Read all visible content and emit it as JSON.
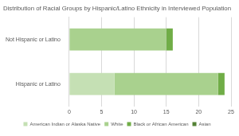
{
  "chart_data": {
    "type": "bar",
    "title": "Distribution of Racial Groups by Hispanic/Latino Ethnicity in Interviewed Population",
    "orientation": "horizontal",
    "stacked": true,
    "grid": true,
    "legend": "bottom",
    "categories": [
      "Not Hispanic or Latino",
      "Hispanic or Latino"
    ],
    "series": [
      {
        "name": "American Indian or Alaska Native",
        "color": "#c5e0b4",
        "values": [
          0,
          7
        ]
      },
      {
        "name": "White",
        "color": "#a9d18e",
        "values": [
          15,
          16
        ]
      },
      {
        "name": "Black or African American",
        "color": "#70ad47",
        "values": [
          1,
          1
        ]
      },
      {
        "name": "Asian",
        "color": "#548235",
        "values": [
          0,
          0
        ]
      }
    ],
    "xlim": [
      0,
      25
    ],
    "xticks": [
      0,
      5,
      10,
      15,
      20,
      25
    ]
  }
}
